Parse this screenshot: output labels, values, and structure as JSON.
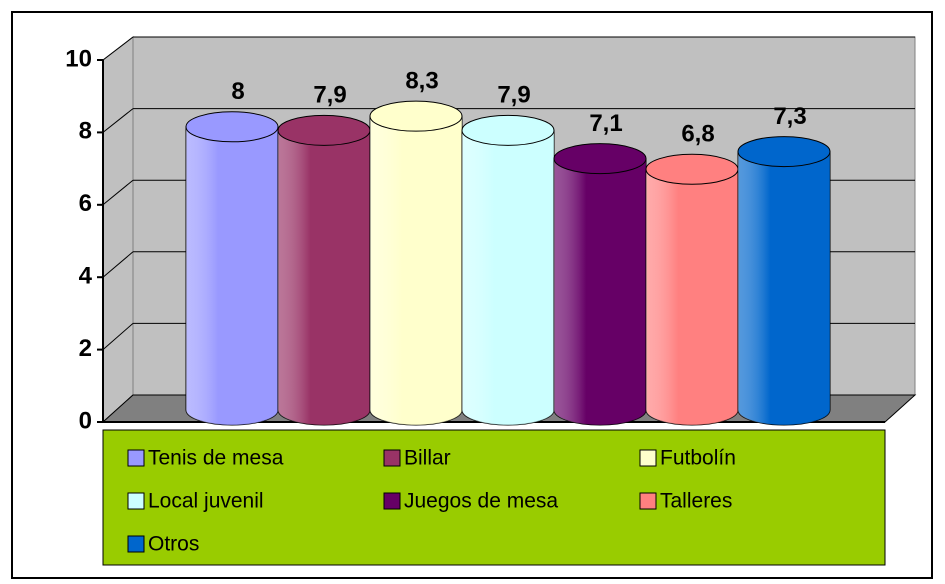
{
  "chart_data": {
    "type": "cylinder",
    "categories": [
      null
    ],
    "series": [
      {
        "name": "Tenis de mesa",
        "color": "#9999ff",
        "values": [
          8
        ],
        "value_labels": [
          "8"
        ]
      },
      {
        "name": "Billar",
        "color": "#993366",
        "values": [
          7.9
        ],
        "value_labels": [
          "7,9"
        ]
      },
      {
        "name": "Futbolín",
        "color": "#ffffcc",
        "values": [
          8.3
        ],
        "value_labels": [
          "8,3"
        ]
      },
      {
        "name": "Local juvenil",
        "color": "#ccffff",
        "values": [
          7.9
        ],
        "value_labels": [
          "7,9"
        ]
      },
      {
        "name": "Juegos de mesa",
        "color": "#660066",
        "values": [
          7.1
        ],
        "value_labels": [
          "7,1"
        ]
      },
      {
        "name": "Talleres",
        "color": "#ff8080",
        "values": [
          6.8
        ],
        "value_labels": [
          "6,8"
        ]
      },
      {
        "name": "Otros",
        "color": "#0066cc",
        "values": [
          7.3
        ],
        "value_labels": [
          "7,3"
        ]
      }
    ],
    "ylim": [
      0,
      10
    ],
    "yticks": [
      0,
      2,
      4,
      6,
      8,
      10
    ],
    "grid": true,
    "legend": "bottom"
  }
}
